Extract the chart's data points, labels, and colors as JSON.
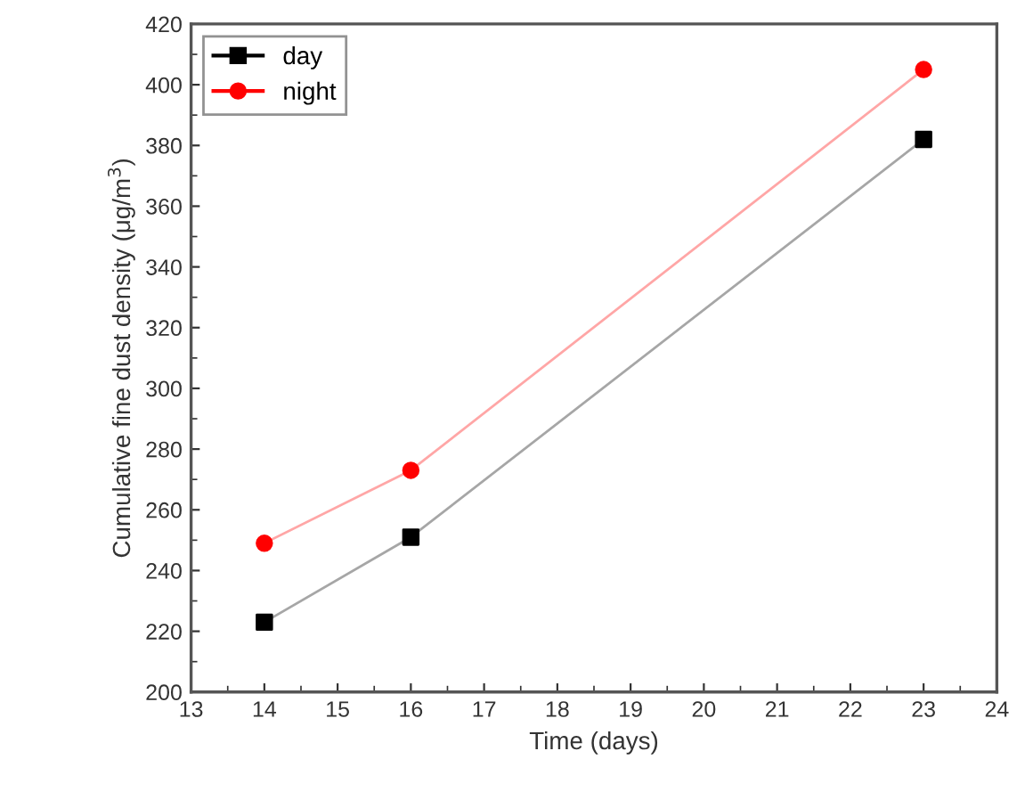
{
  "chart_data": {
    "type": "line",
    "xlabel": "Time (days)",
    "ylabel": "Cumulative fine dust density (μg/m$^{3}$)",
    "x": [
      14,
      16,
      23
    ],
    "series": [
      {
        "name": "day",
        "color": "#000000",
        "marker": "square",
        "values": [
          223,
          251,
          382
        ]
      },
      {
        "name": "night",
        "color": "#ff0000",
        "marker": "circle",
        "values": [
          249,
          273,
          405
        ]
      }
    ],
    "xlim": [
      13,
      24
    ],
    "xticks": [
      13,
      14,
      15,
      16,
      17,
      18,
      19,
      20,
      21,
      22,
      23,
      24
    ],
    "ylim": [
      200,
      420
    ],
    "yticks": [
      200,
      220,
      240,
      260,
      280,
      300,
      320,
      340,
      360,
      380,
      400,
      420
    ],
    "legend": "top left",
    "line_style": "solid",
    "grid": false
  }
}
